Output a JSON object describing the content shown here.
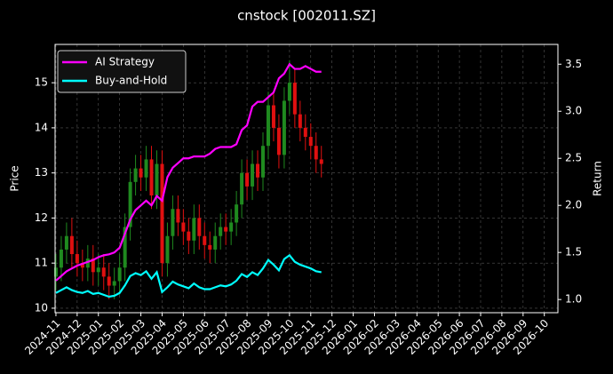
{
  "chart_data": {
    "type": "candlestick",
    "title": "cnstock [002011.SZ]",
    "y_label": "Price",
    "y2_label": "Return",
    "x": [
      0,
      0.25,
      0.5,
      0.75,
      1,
      1.25,
      1.5,
      1.75,
      2,
      2.25,
      2.5,
      2.75,
      3,
      3.25,
      3.5,
      3.75,
      4,
      4.25,
      4.5,
      4.75,
      5,
      5.25,
      5.5,
      5.75,
      6,
      6.25,
      6.5,
      6.75,
      7,
      7.25,
      7.5,
      7.75,
      8,
      8.25,
      8.5,
      8.75,
      9,
      9.25,
      9.5,
      9.75,
      10,
      10.25,
      10.5,
      10.75,
      11,
      11.25,
      11.5,
      11.75,
      12,
      12.25,
      12.5
    ],
    "open": [
      10.7,
      10.9,
      11.3,
      11.6,
      11.2,
      11.0,
      10.9,
      11.1,
      10.8,
      10.9,
      10.7,
      10.5,
      10.6,
      10.9,
      11.8,
      12.8,
      13.1,
      12.9,
      13.3,
      12.5,
      13.2,
      11.0,
      11.6,
      12.2,
      11.9,
      11.7,
      11.5,
      12.0,
      11.6,
      11.4,
      11.3,
      11.6,
      11.8,
      11.7,
      11.9,
      12.3,
      13.0,
      12.7,
      13.2,
      12.9,
      13.6,
      14.5,
      14.0,
      13.4,
      14.6,
      15.0,
      14.3,
      14.0,
      13.8,
      13.6,
      13.3
    ],
    "high": [
      11.2,
      11.6,
      11.9,
      12.0,
      11.5,
      11.3,
      11.4,
      11.4,
      11.2,
      11.2,
      11.0,
      10.9,
      11.2,
      12.1,
      13.1,
      13.4,
      13.4,
      13.6,
      13.6,
      13.5,
      13.5,
      11.9,
      12.5,
      12.5,
      12.2,
      12.0,
      12.3,
      12.3,
      11.9,
      11.7,
      11.9,
      12.1,
      12.1,
      12.2,
      12.6,
      13.3,
      13.3,
      13.5,
      13.5,
      13.9,
      14.8,
      14.8,
      14.3,
      14.9,
      15.5,
      15.3,
      14.6,
      14.3,
      14.1,
      13.9,
      13.6
    ],
    "low": [
      10.4,
      10.6,
      11.0,
      10.9,
      10.7,
      10.6,
      10.6,
      10.5,
      10.5,
      10.4,
      10.2,
      10.2,
      10.3,
      10.6,
      11.5,
      12.5,
      12.6,
      12.6,
      12.2,
      12.2,
      10.7,
      10.7,
      11.3,
      11.6,
      11.4,
      11.2,
      11.2,
      11.3,
      11.1,
      11.0,
      11.0,
      11.3,
      11.4,
      11.4,
      11.6,
      12.0,
      12.4,
      12.4,
      12.6,
      12.6,
      13.3,
      13.7,
      13.1,
      13.1,
      14.3,
      14.0,
      13.7,
      13.5,
      13.3,
      13.0,
      12.9
    ],
    "close": [
      10.9,
      11.3,
      11.6,
      11.2,
      11.0,
      10.9,
      11.1,
      10.8,
      10.9,
      10.7,
      10.5,
      10.6,
      10.9,
      11.8,
      12.8,
      13.1,
      12.9,
      13.3,
      12.5,
      13.2,
      11.0,
      11.6,
      12.2,
      11.9,
      11.7,
      11.5,
      12.0,
      11.6,
      11.4,
      11.3,
      11.6,
      11.8,
      11.7,
      11.9,
      12.3,
      13.0,
      12.7,
      13.2,
      12.9,
      13.6,
      14.5,
      14.0,
      13.4,
      14.6,
      15.0,
      14.3,
      14.0,
      13.8,
      13.6,
      13.3,
      13.2
    ],
    "up_color": "#1f8a1f",
    "down_color": "#e01010",
    "series": [
      {
        "name": "AI Strategy",
        "color": "#ff00ff",
        "axis": "y2",
        "values": [
          1.2,
          1.25,
          1.3,
          1.33,
          1.36,
          1.38,
          1.4,
          1.42,
          1.45,
          1.47,
          1.48,
          1.5,
          1.55,
          1.7,
          1.85,
          1.95,
          2.0,
          2.05,
          2.0,
          2.1,
          2.05,
          2.3,
          2.4,
          2.45,
          2.5,
          2.5,
          2.52,
          2.52,
          2.52,
          2.55,
          2.6,
          2.62,
          2.62,
          2.62,
          2.65,
          2.8,
          2.85,
          3.05,
          3.1,
          3.1,
          3.15,
          3.2,
          3.35,
          3.4,
          3.5,
          3.45,
          3.45,
          3.48,
          3.45,
          3.42,
          3.42
        ]
      },
      {
        "name": "Buy-and-Hold",
        "color": "#00ffff",
        "axis": "y2",
        "values": [
          1.07,
          1.1,
          1.13,
          1.1,
          1.08,
          1.07,
          1.09,
          1.06,
          1.07,
          1.05,
          1.03,
          1.04,
          1.07,
          1.15,
          1.25,
          1.28,
          1.26,
          1.3,
          1.22,
          1.29,
          1.08,
          1.13,
          1.19,
          1.16,
          1.14,
          1.12,
          1.17,
          1.13,
          1.11,
          1.11,
          1.13,
          1.15,
          1.14,
          1.16,
          1.2,
          1.27,
          1.24,
          1.29,
          1.26,
          1.33,
          1.42,
          1.37,
          1.31,
          1.43,
          1.47,
          1.4,
          1.37,
          1.35,
          1.33,
          1.3,
          1.29
        ]
      }
    ],
    "xlim": [
      -0.04,
      23.64
    ],
    "xticks": [
      {
        "value": 0,
        "label": "2024-11"
      },
      {
        "value": 1,
        "label": "2024-12"
      },
      {
        "value": 2,
        "label": "2025-01"
      },
      {
        "value": 3,
        "label": "2025-02"
      },
      {
        "value": 4,
        "label": "2025-03"
      },
      {
        "value": 5,
        "label": "2025-04"
      },
      {
        "value": 6,
        "label": "2025-05"
      },
      {
        "value": 7,
        "label": "2025-06"
      },
      {
        "value": 8,
        "label": "2025-07"
      },
      {
        "value": 9,
        "label": "2025-08"
      },
      {
        "value": 10,
        "label": "2025-09"
      },
      {
        "value": 11,
        "label": "2025-10"
      },
      {
        "value": 12,
        "label": "2025-11"
      },
      {
        "value": 13,
        "label": "2025-12"
      },
      {
        "value": 14,
        "label": "2026-01"
      },
      {
        "value": 15,
        "label": "2026-02"
      },
      {
        "value": 16,
        "label": "2026-03"
      },
      {
        "value": 17,
        "label": "2026-04"
      },
      {
        "value": 18,
        "label": "2026-05"
      },
      {
        "value": 19,
        "label": "2026-06"
      },
      {
        "value": 20,
        "label": "2026-07"
      },
      {
        "value": 21,
        "label": "2026-08"
      },
      {
        "value": 22,
        "label": "2026-09"
      },
      {
        "value": 23,
        "label": "2026-10"
      }
    ],
    "ylim": [
      9.9,
      15.85
    ],
    "yticks": [
      10,
      11,
      12,
      13,
      14,
      15
    ],
    "y2lim": [
      0.86,
      3.71
    ],
    "y2ticks": [
      {
        "value": 1,
        "label": "1.0"
      },
      {
        "value": 1.5,
        "label": "1.5"
      },
      {
        "value": 2,
        "label": "2.0"
      },
      {
        "value": 2.5,
        "label": "2.5"
      },
      {
        "value": 3,
        "label": "3.0"
      },
      {
        "value": 3.5,
        "label": "3.5"
      }
    ],
    "grid": true,
    "legend": "upper left"
  }
}
